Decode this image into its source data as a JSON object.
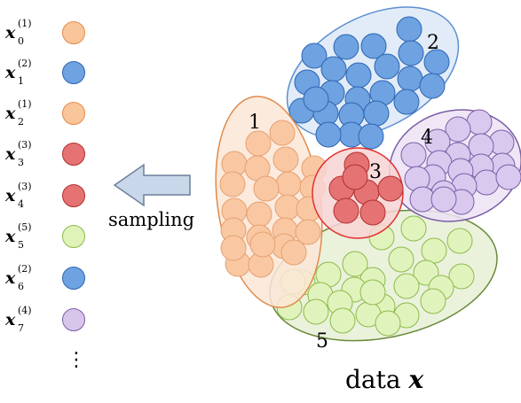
{
  "legend": [
    {
      "var": "x",
      "sub": "0",
      "sup": "(1)",
      "color": "#f9c59a",
      "border": "#e68a4a"
    },
    {
      "var": "x",
      "sub": "1",
      "sup": "(2)",
      "color": "#6ea2e0",
      "border": "#2e66b5"
    },
    {
      "var": "x",
      "sub": "2",
      "sup": "(1)",
      "color": "#f9c59a",
      "border": "#e68a4a"
    },
    {
      "var": "x",
      "sub": "3",
      "sup": "(3)",
      "color": "#e57373",
      "border": "#b23030"
    },
    {
      "var": "x",
      "sub": "4",
      "sup": "(3)",
      "color": "#e57373",
      "border": "#b23030"
    },
    {
      "var": "x",
      "sub": "5",
      "sup": "(5)",
      "color": "#dff2b8",
      "border": "#8dbb4b"
    },
    {
      "var": "x",
      "sub": "6",
      "sup": "(2)",
      "color": "#6ea2e0",
      "border": "#2e66b5"
    },
    {
      "var": "x",
      "sub": "7",
      "sup": "(4)",
      "color": "#d7c6ea",
      "border": "#7b5ea8"
    }
  ],
  "more": "⋮",
  "sampling_label": "sampling",
  "footer": {
    "prefix": "data ",
    "var": "x"
  },
  "clusters": [
    {
      "label": "1",
      "fill": "#fbe6d6",
      "stroke": "#e08a4a",
      "dot": "#f9c8a2",
      "dot_stroke": "#e6a072"
    },
    {
      "label": "2",
      "fill": "#dde9f7",
      "stroke": "#5b8fcf",
      "dot": "#6ea2e0",
      "dot_stroke": "#2e66b5"
    },
    {
      "label": "3",
      "fill": "#f8d4d4",
      "stroke": "#e03030",
      "dot": "#e57373",
      "dot_stroke": "#b23030"
    },
    {
      "label": "4",
      "fill": "#ece3f5",
      "stroke": "#7b5ea8",
      "dot": "#d9c9ee",
      "dot_stroke": "#7b5ea8"
    },
    {
      "label": "5",
      "fill": "#e6f0d6",
      "stroke": "#6b8a3a",
      "dot": "#e1f3bd",
      "dot_stroke": "#8dbb4b"
    }
  ]
}
